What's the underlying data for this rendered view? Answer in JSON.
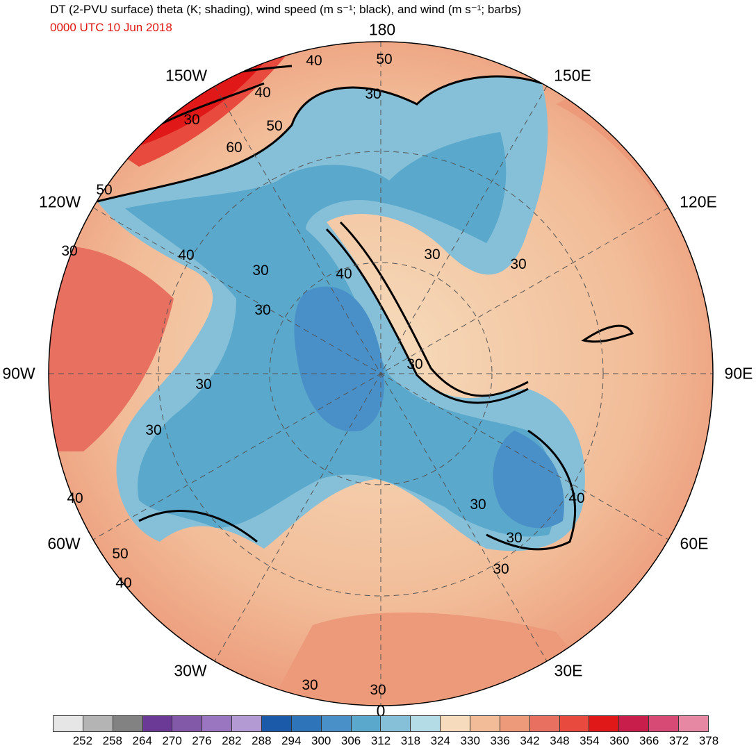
{
  "title": "DT (2-PVU surface) theta (K; shading), wind speed (m s⁻¹; black), and wind (m s⁻¹; barbs)",
  "datetime": "0000 UTC 10 Jun 2018",
  "projection": "north-polar-stereographic",
  "longitude_labels": [
    "180",
    "150E",
    "120E",
    "90E",
    "60E",
    "30E",
    "0",
    "30W",
    "60W",
    "90W",
    "120W",
    "150W"
  ],
  "contour_labels": [
    "50",
    "40",
    "30",
    "40",
    "50",
    "60",
    "50",
    "40",
    "30",
    "30",
    "30",
    "30",
    "40",
    "30",
    "30",
    "30",
    "40",
    "50",
    "40",
    "30",
    "30",
    "30",
    "30",
    "40",
    "30",
    "30",
    "30"
  ],
  "colorbar": {
    "ticks": [
      "252",
      "258",
      "264",
      "270",
      "276",
      "282",
      "288",
      "294",
      "300",
      "306",
      "312",
      "318",
      "324",
      "330",
      "336",
      "342",
      "348",
      "354",
      "360",
      "366",
      "372",
      "378"
    ],
    "colors": [
      "#e6e6e6",
      "#b4b4b4",
      "#828282",
      "#6a3a96",
      "#8258a8",
      "#9a76c0",
      "#b39ad2",
      "#1a5aa8",
      "#2e74b8",
      "#4a90c8",
      "#5aa8cc",
      "#86c0d8",
      "#b4dce6",
      "#f6dcbc",
      "#f2bc98",
      "#ec9a7a",
      "#e87060",
      "#e84a3e",
      "#e01818",
      "#c81e4c",
      "#d84a76",
      "#e688a4"
    ]
  },
  "colors": {
    "subtitle": "#e0140f",
    "contour": "#000000",
    "borders": "#333333"
  }
}
